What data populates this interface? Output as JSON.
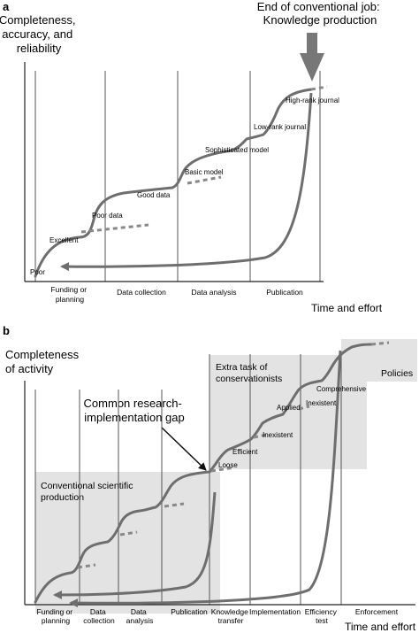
{
  "panel_a": {
    "letter": "a",
    "y_label": [
      "Completeness,",
      "accuracy, and",
      "reliability"
    ],
    "callout": [
      "End of conventional job:",
      "Knowledge production"
    ],
    "stage_labels": [
      "Poor",
      "Excellent",
      "Poor data",
      "Good data",
      "Basic model",
      "Sophisticated model",
      "Low-rank journal",
      "High-rank journal"
    ],
    "phases": [
      [
        "Funding or",
        "planning"
      ],
      [
        "Data collection"
      ],
      [
        "Data analysis"
      ],
      [
        "Publication"
      ]
    ],
    "x_label": "Time and effort"
  },
  "panel_b": {
    "letter": "b",
    "y_label": [
      "Completeness",
      "of activity"
    ],
    "gap_label": [
      "Common research-",
      "implementation gap"
    ],
    "region_conventional": [
      "Conventional scientific",
      "production"
    ],
    "region_extra": [
      "Extra task of",
      "conservationists"
    ],
    "region_policies": "Policies",
    "stage_labels": [
      "Loose",
      "Efficient",
      "Inexistent",
      "Applied",
      "Inexistent",
      "Comprehensive"
    ],
    "phases": [
      [
        "Funding or",
        "planning"
      ],
      [
        "Data",
        "collection"
      ],
      [
        "Data",
        "analysis"
      ],
      [
        "Publication"
      ],
      [
        "Knowledge",
        "transfer"
      ],
      [
        "Implementation"
      ],
      [
        "Efficiency",
        "test"
      ],
      [
        "Enforcement"
      ]
    ],
    "x_label": "Time and effort"
  },
  "colors": {
    "curve": "#6e6e6e",
    "axis": "#222222",
    "divider": "#555555",
    "shade": "#e3e3e3",
    "arrow": "#777777"
  }
}
